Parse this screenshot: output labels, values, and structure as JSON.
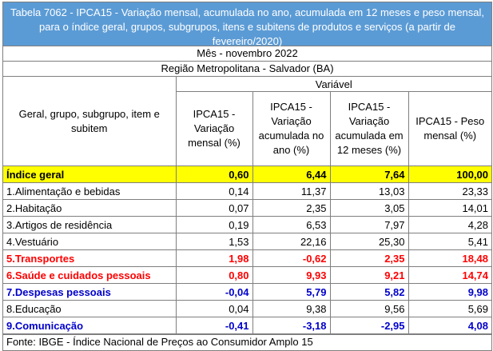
{
  "title": "Tabela 7062 - IPCA15 - Variação mensal, acumulada no ano, acumulada em 12 meses e peso mensal, para o índice geral, grupos, subgrupos, itens e subitens de produtos e serviços (a partir de fevereiro/2020)",
  "month": "Mês - novembro 2022",
  "region": "Região Metropolitana - Salvador (BA)",
  "header": {
    "left": "Geral, grupo, subgrupo, item e subitem",
    "variable": "Variável",
    "columns": [
      "IPCA15 - Variação mensal (%)",
      "IPCA15 - Variação acumulada no ano (%)",
      "IPCA15 - Variação acumulada em 12 meses (%)",
      "IPCA15 - Peso mensal (%)"
    ]
  },
  "rows": [
    {
      "label": "Índice geral",
      "v1": "0,60",
      "v2": "6,44",
      "v3": "7,64",
      "v4": "100,00"
    },
    {
      "label": "1.Alimentação e bebidas",
      "v1": "0,14",
      "v2": "11,37",
      "v3": "13,03",
      "v4": "23,33"
    },
    {
      "label": "2.Habitação",
      "v1": "0,07",
      "v2": "2,35",
      "v3": "3,05",
      "v4": "14,01"
    },
    {
      "label": "3.Artigos de residência",
      "v1": "0,19",
      "v2": "6,53",
      "v3": "7,97",
      "v4": "4,28"
    },
    {
      "label": "4.Vestuário",
      "v1": "1,53",
      "v2": "22,16",
      "v3": "25,30",
      "v4": "5,41"
    },
    {
      "label": "5.Transportes",
      "v1": "1,98",
      "v2": "-0,62",
      "v3": "2,35",
      "v4": "18,48"
    },
    {
      "label": "6.Saúde e cuidados pessoais",
      "v1": "0,80",
      "v2": "9,93",
      "v3": "9,21",
      "v4": "14,74"
    },
    {
      "label": "7.Despesas pessoais",
      "v1": "-0,04",
      "v2": "5,79",
      "v3": "5,82",
      "v4": "9,98"
    },
    {
      "label": "8.Educação",
      "v1": "0,04",
      "v2": "9,38",
      "v3": "9,56",
      "v4": "5,69"
    },
    {
      "label": "9.Comunicação",
      "v1": "-0,41",
      "v2": "-3,18",
      "v3": "-2,95",
      "v4": "4,08"
    }
  ],
  "footer": "Fonte: IBGE - Índice Nacional de Preços ao Consumidor Amplo 15",
  "colors": {
    "title_bg": "#5b9bd5",
    "highlight": "#ffff00",
    "red": "#ff0000",
    "blue": "#0000cc"
  }
}
